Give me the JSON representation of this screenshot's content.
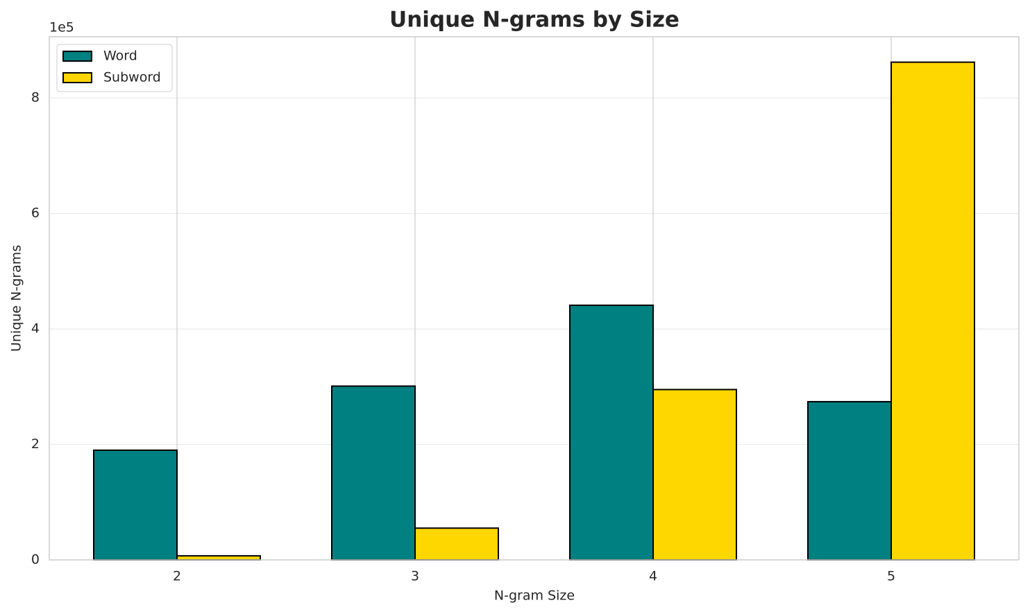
{
  "chart_data": {
    "type": "bar",
    "title": "Unique N-grams by Size",
    "x_label": "N-gram Size",
    "y_label": "Unique N-grams",
    "y_offset_label": "1e5",
    "categories": [
      "2",
      "3",
      "4",
      "5"
    ],
    "series": [
      {
        "name": "Word",
        "color": "#008080",
        "values": [
          1.9,
          3.01,
          4.41,
          2.74
        ]
      },
      {
        "name": "Subword",
        "color": "#ffd700",
        "values": [
          0.07,
          0.55,
          2.95,
          8.62
        ]
      }
    ],
    "ylim": [
      0,
      9.06
    ],
    "yticks": [
      0,
      2,
      4,
      6,
      8
    ],
    "grid": true,
    "legend": "upper left"
  }
}
